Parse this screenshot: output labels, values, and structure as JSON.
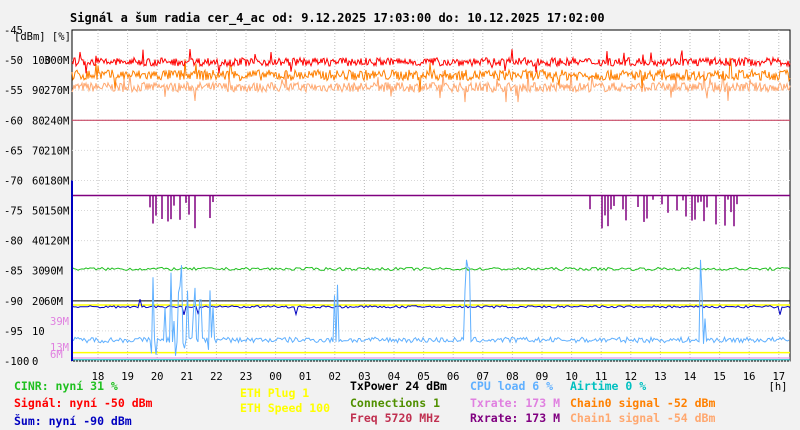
{
  "chart_data": {
    "type": "line",
    "title": "Signál a šum radia cer_4_ac od: 9.12.2025 17:03:00 do: 10.12.2025 17:02:00",
    "y_unit_labels": [
      "[dBm]",
      "[%]"
    ],
    "x_unit": "[h]",
    "y_axis_dbm": [
      "-45",
      "-50",
      "-55",
      "-60",
      "-65",
      "-70",
      "-75",
      "-80",
      "-85",
      "-90",
      "-95",
      "-100"
    ],
    "y_axis_pct": [
      "100",
      "90",
      "80",
      "70",
      "60",
      "50",
      "40",
      "30",
      "20",
      "10",
      "0"
    ],
    "y_axis_rate": [
      "300M",
      "270M",
      "240M",
      "210M",
      "180M",
      "150M",
      "120M",
      "90M",
      "60M"
    ],
    "rate_extra_labels": [
      "39M",
      "13M",
      "6M"
    ],
    "x_ticks": [
      "18",
      "19",
      "20",
      "21",
      "22",
      "23",
      "00",
      "01",
      "02",
      "03",
      "04",
      "05",
      "06",
      "07",
      "08",
      "09",
      "10",
      "11",
      "12",
      "13",
      "14",
      "15",
      "16",
      "17"
    ],
    "ylim_dbm": [
      -100,
      -45
    ],
    "grid": true,
    "series": [
      {
        "name": "Chain0 signal",
        "color": "#ff8000",
        "approx_dbm": -52
      },
      {
        "name": "Chain1 signal",
        "color": "#ffa870",
        "approx_dbm": -54
      },
      {
        "name": "Signál",
        "color": "#ff0000",
        "approx_dbm": -50
      },
      {
        "name": "Txrate",
        "color": "#e080e0",
        "approx_rate_M": 173
      },
      {
        "name": "Rxrate",
        "color": "#800080",
        "approx_rate_M": 173
      },
      {
        "name": "CINR",
        "color": "#20c020",
        "approx_pct": 31
      },
      {
        "name": "Šum",
        "color": "#0000c0",
        "approx_dbm": -90
      },
      {
        "name": "CPU load",
        "color": "#60b0ff",
        "approx_pct": 6
      },
      {
        "name": "Airtime",
        "color": "#00c0c0",
        "approx_pct": 0
      }
    ]
  },
  "legend": {
    "col1": [
      "CINR: nyní 31 %",
      "Signál: nyní -50 dBm",
      "Šum: nyní -90 dBm"
    ],
    "col2": [
      "ETH Plug 1",
      "ETH Speed 100"
    ],
    "col3": [
      "TxPower 24 dBm",
      "Connections 1",
      "Freq 5720 MHz"
    ],
    "col4": [
      "CPU load 6 %",
      "Txrate: 173 M",
      "Rxrate: 173 M"
    ],
    "col5": [
      "Airtime 0 %",
      "Chain0 signal -52 dBm",
      "Chain1 signal -54 dBm"
    ]
  },
  "colors": {
    "cinr": "#20c020",
    "signal": "#ff0000",
    "noise": "#0000c0",
    "eth": "#ffff00",
    "txpower": "#000000",
    "connections": "#509000",
    "freq": "#c03050",
    "cpu": "#60b0ff",
    "txrate": "#e080e0",
    "rxrate": "#800080",
    "airtime": "#00c0c0",
    "chain0": "#ff8000",
    "chain1": "#ffa870"
  }
}
